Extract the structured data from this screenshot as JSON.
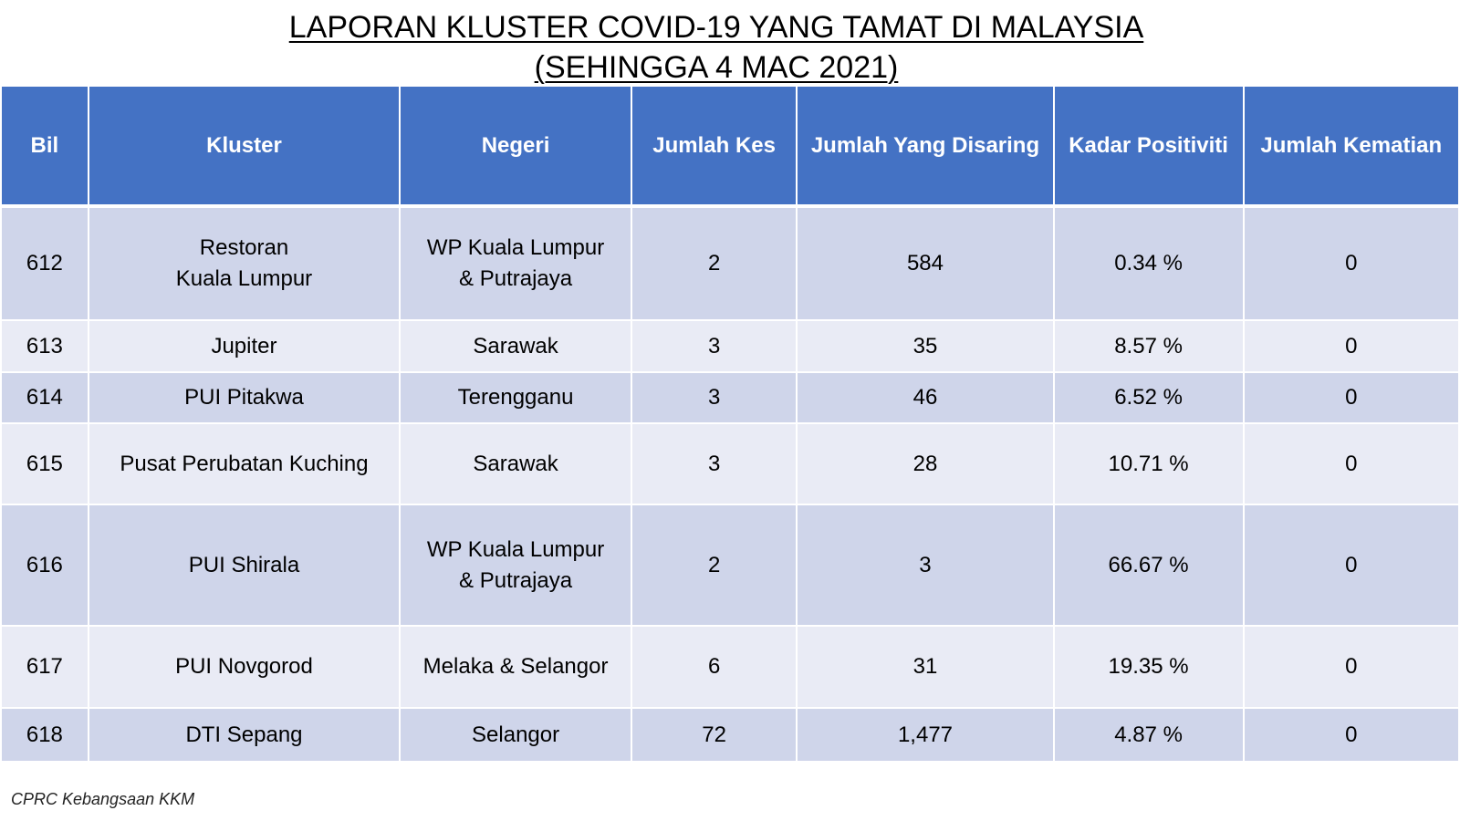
{
  "title": {
    "line1": "LAPORAN KLUSTER COVID-19 YANG TAMAT DI MALAYSIA",
    "line2": "(SEHINGGA 4 MAC 2021)"
  },
  "table": {
    "headers": [
      "Bil",
      "Kluster",
      "Negeri",
      "Jumlah Kes",
      "Jumlah Yang Disaring",
      "Kadar Positiviti",
      "Jumlah Kematian"
    ],
    "rows": [
      {
        "bil": "612",
        "kluster": "Restoran\nKuala Lumpur",
        "negeri": "WP Kuala Lumpur\n& Putrajaya",
        "kes": "2",
        "disaring": "584",
        "positiviti": "0.34 %",
        "kematian": "0"
      },
      {
        "bil": "613",
        "kluster": "Jupiter",
        "negeri": "Sarawak",
        "kes": "3",
        "disaring": "35",
        "positiviti": "8.57 %",
        "kematian": "0"
      },
      {
        "bil": "614",
        "kluster": "PUI Pitakwa",
        "negeri": "Terengganu",
        "kes": "3",
        "disaring": "46",
        "positiviti": "6.52 %",
        "kematian": "0"
      },
      {
        "bil": "615",
        "kluster": "Pusat Perubatan Kuching",
        "negeri": "Sarawak",
        "kes": "3",
        "disaring": "28",
        "positiviti": "10.71 %",
        "kematian": "0"
      },
      {
        "bil": "616",
        "kluster": "PUI Shirala",
        "negeri": "WP Kuala Lumpur\n& Putrajaya",
        "kes": "2",
        "disaring": "3",
        "positiviti": "66.67 %",
        "kematian": "0"
      },
      {
        "bil": "617",
        "kluster": "PUI Novgorod",
        "negeri": "Melaka & Selangor",
        "kes": "6",
        "disaring": "31",
        "positiviti": "19.35 %",
        "kematian": "0"
      },
      {
        "bil": "618",
        "kluster": "DTI Sepang",
        "negeri": "Selangor",
        "kes": "72",
        "disaring": "1,477",
        "positiviti": "4.87 %",
        "kematian": "0"
      }
    ]
  },
  "footer": {
    "source": "CPRC Kebangsaan KKM"
  },
  "colors": {
    "header_bg": "#4472c4",
    "row_dark": "#cfd5ea",
    "row_light": "#e9ebf5"
  }
}
